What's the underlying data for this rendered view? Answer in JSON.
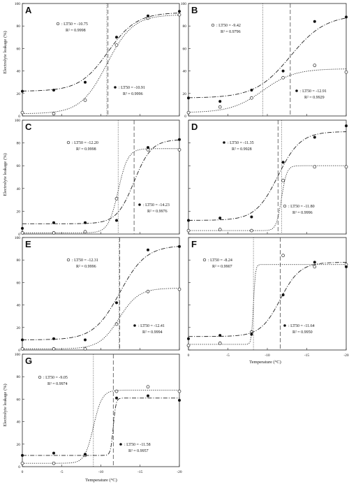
{
  "figure": {
    "ylabel": "Electrolyte leakage (%)",
    "xlabel": "Temperature (°C)",
    "x_ticks": [
      "0",
      "-5",
      "-10",
      "-15",
      "-20"
    ],
    "y_ticks": [
      "0",
      "20",
      "40",
      "60",
      "80",
      "100"
    ]
  },
  "chart_data": [
    {
      "panel": "A",
      "type": "scatter",
      "xlim": [
        0,
        -20
      ],
      "ylim": [
        0,
        100
      ],
      "series": [
        {
          "marker": "open",
          "lt50_label": ": LT50 = -10.75",
          "r2_label": "R² = 0.9998",
          "x": [
            0,
            -4,
            -8,
            -12,
            -16,
            -20
          ],
          "y": [
            3,
            2,
            14,
            63,
            87,
            90
          ],
          "curve": {
            "low": 2,
            "high": 90,
            "lt50": -10.75,
            "k": 0.6
          }
        },
        {
          "marker": "filled",
          "lt50_label": ": LT50 = -10.91",
          "r2_label": "R² = 0.9996",
          "x": [
            0,
            -4,
            -8,
            -12,
            -16,
            -20
          ],
          "y": [
            22,
            23,
            30,
            70,
            89,
            93
          ],
          "curve": {
            "low": 22,
            "high": 92,
            "lt50": -10.91,
            "k": 0.55
          }
        }
      ]
    },
    {
      "panel": "B",
      "type": "scatter",
      "xlim": [
        0,
        -20
      ],
      "ylim": [
        0,
        100
      ],
      "series": [
        {
          "marker": "open",
          "lt50_label": ": LT50 = -9.42",
          "r2_label": "R² = 0.9796",
          "x": [
            0,
            -4,
            -8,
            -12,
            -16,
            -20
          ],
          "y": [
            3,
            8,
            16,
            34,
            45,
            39
          ],
          "curve": {
            "low": 3,
            "high": 42,
            "lt50": -9.42,
            "k": 0.5
          }
        },
        {
          "marker": "filled",
          "lt50_label": ": LT50 = -12.91",
          "r2_label": "R² = 0.9929",
          "x": [
            0,
            -4,
            -8,
            -12,
            -16,
            -20
          ],
          "y": [
            16,
            13,
            23,
            40,
            84,
            88
          ],
          "curve": {
            "low": 16,
            "high": 90,
            "lt50": -12.91,
            "k": 0.45
          }
        }
      ]
    },
    {
      "panel": "C",
      "type": "scatter",
      "xlim": [
        0,
        -20
      ],
      "ylim": [
        0,
        100
      ],
      "series": [
        {
          "marker": "open",
          "lt50_label": ": LT50 = -12.20",
          "r2_label": "R² = 0.9998",
          "x": [
            0,
            -4,
            -8,
            -12,
            -16,
            -20
          ],
          "y": [
            1,
            1,
            2,
            31,
            74,
            74
          ],
          "curve": {
            "low": 1,
            "high": 75,
            "lt50": -12.2,
            "k": 1.6
          }
        },
        {
          "marker": "filled",
          "lt50_label": ": LT50 = -14.23",
          "r2_label": "R² = 0.9976",
          "x": [
            0,
            -4,
            -8,
            -12,
            -16,
            -20
          ],
          "y": [
            5,
            10,
            10,
            12,
            76,
            83
          ],
          "curve": {
            "low": 9,
            "high": 83,
            "lt50": -14.23,
            "k": 0.9
          }
        }
      ]
    },
    {
      "panel": "D",
      "type": "scatter",
      "xlim": [
        0,
        -20
      ],
      "ylim": [
        0,
        100
      ],
      "series": [
        {
          "marker": "filled",
          "lt50_label": ": LT50 = -11.35",
          "r2_label": "R² = 0.9928",
          "x": [
            0,
            -4,
            -8,
            -12,
            -16,
            -20
          ],
          "y": [
            12,
            14,
            15,
            63,
            85,
            95
          ],
          "curve": {
            "low": 12,
            "high": 90,
            "lt50": -11.35,
            "k": 0.7
          }
        },
        {
          "marker": "open",
          "lt50_label": ": LT50 = -11.80",
          "r2_label": "R² = 0.9996",
          "x": [
            0,
            -4,
            -8,
            -12,
            -16,
            -20
          ],
          "y": [
            3,
            4,
            3,
            47,
            59,
            59
          ],
          "curve": {
            "low": 3,
            "high": 60,
            "lt50": -11.8,
            "k": 3
          }
        }
      ]
    },
    {
      "panel": "E",
      "type": "scatter",
      "xlim": [
        0,
        -20
      ],
      "ylim": [
        0,
        100
      ],
      "series": [
        {
          "marker": "open",
          "lt50_label": ": LT50 = -12.31",
          "r2_label": "R² = 0.9996",
          "x": [
            0,
            -4,
            -8,
            -12,
            -16,
            -20
          ],
          "y": [
            1,
            1,
            1,
            23,
            52,
            54
          ],
          "curve": {
            "low": 1,
            "high": 55,
            "lt50": -12.31,
            "k": 0.8
          }
        },
        {
          "marker": "filled",
          "lt50_label": ": LT50 = -12.41",
          "r2_label": "R² = 0.9994",
          "x": [
            0,
            -4,
            -8,
            -12,
            -16,
            -20
          ],
          "y": [
            9,
            10,
            9,
            42,
            89,
            92
          ],
          "curve": {
            "low": 9,
            "high": 93,
            "lt50": -12.41,
            "k": 0.6
          }
        }
      ]
    },
    {
      "panel": "F",
      "type": "scatter",
      "xlim": [
        0,
        -20
      ],
      "ylim": [
        0,
        100
      ],
      "series": [
        {
          "marker": "open",
          "lt50_label": ": LT50 = -8.24",
          "r2_label": "R² = 0.9907",
          "x": [
            0,
            -4,
            -8,
            -12,
            -16,
            -20
          ],
          "y": [
            4,
            6,
            16,
            84,
            74,
            76
          ],
          "curve": {
            "low": 5,
            "high": 76,
            "lt50": -8.24,
            "k": 8
          }
        },
        {
          "marker": "filled",
          "lt50_label": ": LT50 = -11.64",
          "r2_label": "R² = 0.9950",
          "x": [
            0,
            -4,
            -8,
            -12,
            -16,
            -20
          ],
          "y": [
            10,
            13,
            14,
            49,
            78,
            74
          ],
          "curve": {
            "low": 12,
            "high": 78,
            "lt50": -11.64,
            "k": 0.8
          }
        }
      ]
    },
    {
      "panel": "G",
      "type": "scatter",
      "xlim": [
        0,
        -20
      ],
      "ylim": [
        0,
        100
      ],
      "series": [
        {
          "marker": "open",
          "lt50_label": ": LT50 = -9.05",
          "r2_label": "R² = 0.9974",
          "x": [
            0,
            -4,
            -8,
            -12,
            -16,
            -20
          ],
          "y": [
            3,
            3,
            10,
            67,
            71,
            67
          ],
          "curve": {
            "low": 3,
            "high": 68,
            "lt50": -9.05,
            "k": 1.8
          }
        },
        {
          "marker": "filled",
          "lt50_label": ": LT50 = -11.58",
          "r2_label": "R² = 0.9957",
          "x": [
            0,
            -4,
            -8,
            -12,
            -16,
            -20
          ],
          "y": [
            10,
            12,
            11,
            61,
            63,
            59
          ],
          "curve": {
            "low": 10,
            "high": 61,
            "lt50": -11.58,
            "k": 6
          }
        }
      ]
    }
  ]
}
